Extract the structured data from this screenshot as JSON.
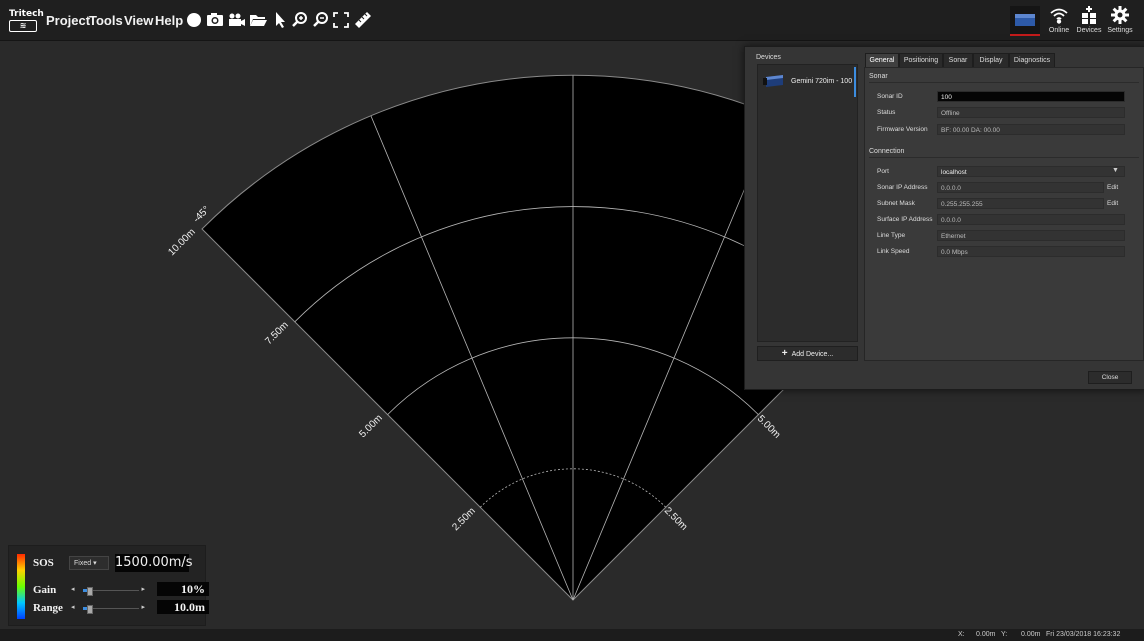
{
  "menubar": {
    "logo_top": "Tritech",
    "logo_mark": "≋",
    "menus": [
      "Project",
      "Tools",
      "View",
      "Help"
    ],
    "toolbar_icons": [
      "record-icon",
      "camera-icon",
      "video-camera-icon",
      "open-folder-icon",
      "pointer-icon",
      "zoom-in-icon",
      "zoom-out-icon",
      "fit-view-icon",
      "measure-ruler-icon"
    ],
    "right_buttons": [
      {
        "label": "Online",
        "icon": "wifi-icon"
      },
      {
        "label": "Devices",
        "icon": "add-device-icon"
      },
      {
        "label": "Settings",
        "icon": "gear-icon"
      }
    ]
  },
  "sonar_view": {
    "range_labels_left": [
      "10.00m",
      "7.50m",
      "5.00m",
      "2.50m"
    ],
    "range_labels_right": [
      "5.00m",
      "2.50m"
    ],
    "angle_label": "-45°"
  },
  "dialog": {
    "devices_title": "Devices",
    "device_item": "Gemini 720im - 100",
    "add_device": "Add Device...",
    "tabs": [
      "General",
      "Positioning",
      "Sonar",
      "Display",
      "Diagnostics"
    ],
    "active_tab": "General",
    "sonar_section": "Sonar",
    "sonar_id_label": "Sonar ID",
    "sonar_id_value": "100",
    "status_label": "Status",
    "status_value": "Offline",
    "firmware_label": "Firmware Version",
    "firmware_value": "BF: 00.00 DA: 00.00",
    "connection_section": "Connection",
    "port_label": "Port",
    "port_value": "localhost",
    "ip_label": "Sonar IP Address",
    "ip_value": "0.0.0.0",
    "mask_label": "Subnet Mask",
    "mask_value": "0.255.255.255",
    "surface_ip_label": "Surface IP Address",
    "surface_ip_value": "0.0.0.0",
    "line_type_label": "Line Type",
    "line_type_value": "Ethernet",
    "link_speed_label": "Link Speed",
    "link_speed_value": "0.0 Mbps",
    "edit_label": "Edit",
    "close_label": "Close"
  },
  "controls": {
    "sos_label": "SOS",
    "sos_mode": "Fixed",
    "sos_value": "1500.00m/s",
    "gain_label": "Gain",
    "gain_value": "10%",
    "gain_level": 0.1,
    "range_label": "Range",
    "range_value": "10.0m",
    "range_level": 0.1
  },
  "statusbar": {
    "x_label": "X:",
    "x_value": "0.00m",
    "y_label": "Y:",
    "y_value": "0.00m",
    "datetime": "Fri 23/03/2018 16:23:32"
  }
}
